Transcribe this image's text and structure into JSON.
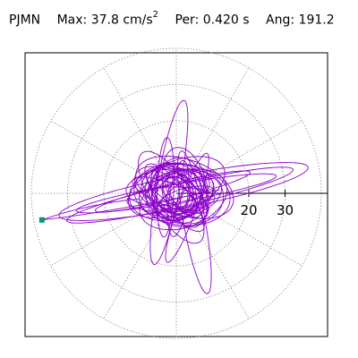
{
  "header": {
    "station": "PJMN",
    "max_label": "Max:",
    "max_value": "37.8 cm/s",
    "max_exp": "2",
    "per_label": "Per:",
    "per_value": "0.420 s",
    "ang_label": "Ang:",
    "ang_value": "191.2"
  },
  "chart_data": {
    "type": "scatter",
    "title": "PJMN  Max: 37.8 cm/s2  Per: 0.420 s  Ang: 191.2",
    "radial_max": 40,
    "rings": [
      10,
      20,
      30,
      40
    ],
    "tick_labels": [
      "20",
      "30"
    ],
    "peak_marker": {
      "magnitude": 37.8,
      "angle_deg": 191.2
    },
    "trace_color": "#8b00c8",
    "marker_color": "#009977",
    "grid": "dotted-polar"
  }
}
